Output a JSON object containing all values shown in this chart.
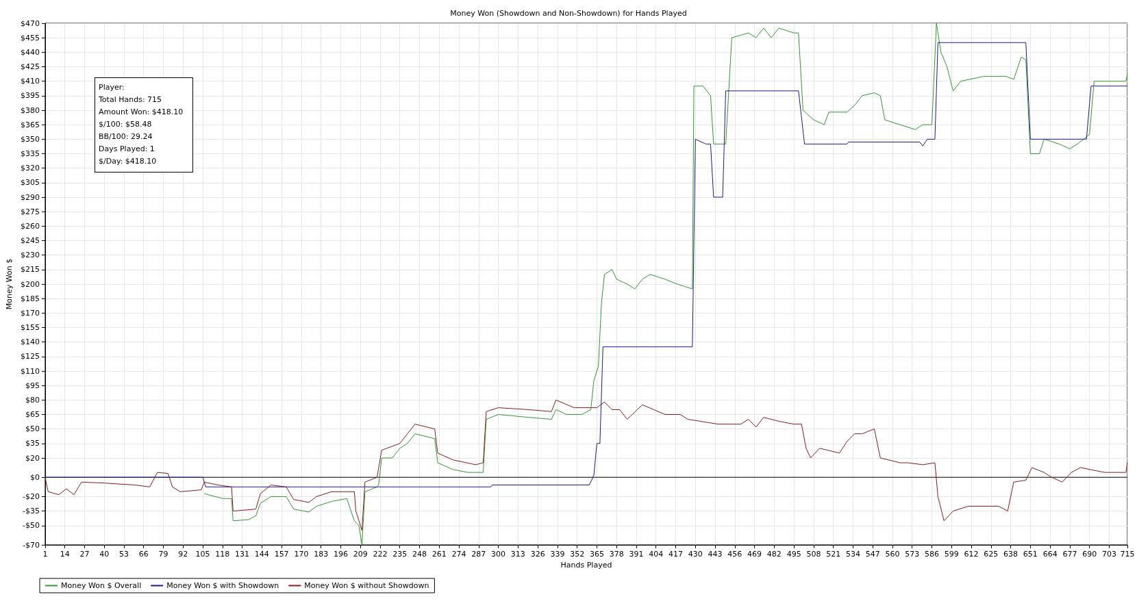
{
  "chart_data": {
    "type": "line",
    "title": "Money Won (Showdown and Non-Showdown) for Hands Played",
    "xlabel": "Hands Played",
    "ylabel": "Money Won $",
    "annotations": [
      "Player:",
      "Total Hands: 715",
      "Amount Won: $418.10",
      "$/100: $58.48",
      "BB/100: 29.24",
      "Days Played: 1",
      "$/Day: $418.10"
    ],
    "xlim": [
      1,
      715
    ],
    "xticks": [
      1,
      14,
      27,
      40,
      53,
      66,
      79,
      92,
      105,
      118,
      131,
      144,
      157,
      170,
      183,
      196,
      209,
      222,
      235,
      248,
      261,
      274,
      287,
      300,
      313,
      326,
      339,
      352,
      365,
      378,
      391,
      404,
      417,
      430,
      443,
      456,
      469,
      482,
      495,
      508,
      521,
      534,
      547,
      560,
      573,
      586,
      599,
      612,
      625,
      638,
      651,
      664,
      677,
      690,
      703,
      715
    ],
    "ylim": [
      -70,
      470
    ],
    "yticks": [
      {
        "value": -70,
        "label": "-$70"
      },
      {
        "value": -50,
        "label": "-$50"
      },
      {
        "value": -35,
        "label": "-$35"
      },
      {
        "value": -20,
        "label": "-$20"
      },
      {
        "value": 0,
        "label": "$0"
      },
      {
        "value": 20,
        "label": "$20"
      },
      {
        "value": 35,
        "label": "$35"
      },
      {
        "value": 50,
        "label": "$50"
      },
      {
        "value": 65,
        "label": "$65"
      },
      {
        "value": 80,
        "label": "$80"
      },
      {
        "value": 95,
        "label": "$95"
      },
      {
        "value": 110,
        "label": "$110"
      },
      {
        "value": 125,
        "label": "$125"
      },
      {
        "value": 140,
        "label": "$140"
      },
      {
        "value": 155,
        "label": "$155"
      },
      {
        "value": 170,
        "label": "$170"
      },
      {
        "value": 185,
        "label": "$185"
      },
      {
        "value": 200,
        "label": "$200"
      },
      {
        "value": 215,
        "label": "$215"
      },
      {
        "value": 230,
        "label": "$230"
      },
      {
        "value": 245,
        "label": "$245"
      },
      {
        "value": 260,
        "label": "$260"
      },
      {
        "value": 275,
        "label": "$275"
      },
      {
        "value": 290,
        "label": "$290"
      },
      {
        "value": 305,
        "label": "$305"
      },
      {
        "value": 320,
        "label": "$320"
      },
      {
        "value": 335,
        "label": "$335"
      },
      {
        "value": 350,
        "label": "$350"
      },
      {
        "value": 365,
        "label": "$365"
      },
      {
        "value": 380,
        "label": "$380"
      },
      {
        "value": 395,
        "label": "$395"
      },
      {
        "value": 410,
        "label": "$410"
      },
      {
        "value": 425,
        "label": "$425"
      },
      {
        "value": 440,
        "label": "$440"
      },
      {
        "value": 455,
        "label": "$455"
      },
      {
        "value": 470,
        "label": "$470"
      }
    ],
    "grid": true,
    "legend": "bottom left",
    "marker": "none",
    "line_style": "solid",
    "ref_lines": [
      {
        "axis": "y",
        "value": 0,
        "label": null,
        "color": "#000000"
      }
    ],
    "series": [
      {
        "name": "Money Won $ Overall",
        "color": "#2e9a2e",
        "x": [
          106,
          118,
          124,
          125,
          135,
          140,
          143,
          150,
          160,
          165,
          175,
          180,
          190,
          200,
          205,
          208,
          210,
          212,
          220,
          221,
          223,
          230,
          235,
          240,
          245,
          258,
          260,
          270,
          280,
          290,
          292,
          300,
          320,
          335,
          338,
          345,
          355,
          361,
          363,
          366,
          368,
          370,
          375,
          378,
          385,
          390,
          395,
          400,
          410,
          418,
          428,
          429,
          435,
          440,
          442,
          450,
          454,
          465,
          470,
          475,
          480,
          485,
          495,
          498,
          501,
          508,
          515,
          518,
          530,
          535,
          540,
          548,
          552,
          555,
          565,
          575,
          580,
          586,
          589,
          592,
          596,
          600,
          605,
          620,
          635,
          640,
          645,
          648,
          651,
          657,
          660,
          670,
          677,
          682,
          690,
          693,
          703,
          714,
          715
        ],
        "values": [
          -17,
          -22,
          -22,
          -45,
          -44,
          -40,
          -27,
          -20,
          -20,
          -33,
          -36,
          -30,
          -25,
          -22,
          -45,
          -50,
          -70,
          -15,
          -10,
          -8,
          20,
          20,
          30,
          35,
          45,
          40,
          15,
          8,
          5,
          5,
          60,
          65,
          62,
          60,
          70,
          65,
          65,
          70,
          100,
          115,
          180,
          210,
          215,
          205,
          200,
          195,
          205,
          210,
          205,
          200,
          195,
          405,
          405,
          395,
          345,
          345,
          455,
          460,
          455,
          465,
          455,
          465,
          460,
          460,
          380,
          370,
          365,
          378,
          378,
          385,
          395,
          398,
          395,
          370,
          365,
          360,
          365,
          365,
          470,
          440,
          425,
          400,
          410,
          415,
          415,
          412,
          435,
          432,
          335,
          335,
          350,
          345,
          340,
          345,
          355,
          410,
          410,
          410,
          418
        ]
      },
      {
        "name": "Money Won $ with Showdown",
        "color": "#1a1a8c",
        "x": [
          1,
          105,
          107,
          295,
          296,
          360,
          363,
          365,
          367,
          369,
          428,
          430,
          437,
          440,
          442,
          448,
          450,
          498,
          502,
          530,
          531,
          578,
          580,
          583,
          588,
          590,
          648,
          651,
          688,
          691,
          715
        ],
        "values": [
          0,
          0,
          -10,
          -10,
          -8,
          -8,
          2,
          35,
          35,
          135,
          135,
          350,
          345,
          345,
          290,
          290,
          400,
          400,
          345,
          345,
          347,
          347,
          343,
          350,
          350,
          450,
          450,
          350,
          350,
          405,
          405
        ]
      },
      {
        "name": "Money Won $ without Showdown",
        "color": "#8b1a1a",
        "x": [
          1,
          3,
          10,
          15,
          20,
          25,
          40,
          60,
          70,
          75,
          82,
          85,
          90,
          104,
          106,
          115,
          124,
          125,
          140,
          143,
          150,
          160,
          165,
          175,
          180,
          190,
          205,
          206,
          210,
          212,
          220,
          223,
          235,
          240,
          245,
          258,
          260,
          270,
          285,
          290,
          292,
          300,
          320,
          335,
          338,
          350,
          365,
          370,
          375,
          380,
          385,
          395,
          410,
          420,
          425,
          445,
          460,
          465,
          470,
          475,
          485,
          495,
          500,
          503,
          506,
          512,
          525,
          530,
          535,
          540,
          548,
          552,
          565,
          570,
          580,
          588,
          590,
          594,
          600,
          610,
          620,
          630,
          636,
          640,
          648,
          652,
          660,
          665,
          672,
          678,
          684,
          700,
          714,
          715
        ],
        "values": [
          0,
          -15,
          -18,
          -12,
          -18,
          -5,
          -6,
          -8,
          -10,
          5,
          4,
          -10,
          -15,
          -13,
          -5,
          -8,
          -10,
          -35,
          -33,
          -17,
          -8,
          -10,
          -23,
          -26,
          -20,
          -15,
          -15,
          -35,
          -55,
          -5,
          0,
          28,
          35,
          45,
          55,
          50,
          25,
          18,
          13,
          15,
          68,
          72,
          70,
          68,
          80,
          72,
          72,
          78,
          70,
          70,
          60,
          75,
          65,
          65,
          60,
          55,
          55,
          60,
          52,
          62,
          58,
          55,
          55,
          30,
          20,
          30,
          25,
          37,
          45,
          45,
          50,
          20,
          15,
          15,
          13,
          15,
          -20,
          -45,
          -35,
          -30,
          -30,
          -30,
          -35,
          -5,
          -3,
          10,
          5,
          0,
          -5,
          5,
          10,
          5,
          5,
          15
        ]
      }
    ]
  }
}
